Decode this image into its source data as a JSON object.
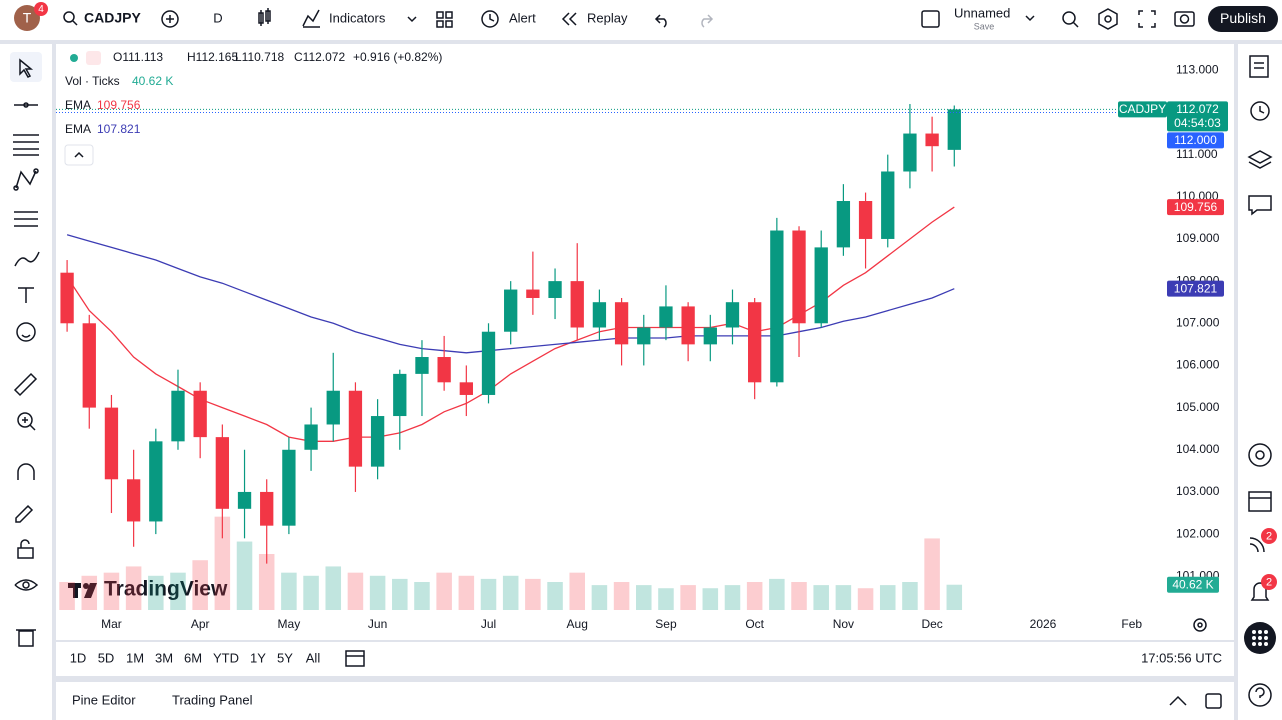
{
  "toolbar": {
    "avatar": "T",
    "badge": "4",
    "symbol": "CADJPY",
    "interval": "D",
    "indicators": "Indicators",
    "alert": "Alert",
    "replay": "Replay",
    "layout_name": "Unnamed",
    "layout_status": "Save",
    "publish": "Publish"
  },
  "chart_data": {
    "type": "candlestick",
    "header": [
      "O111.113",
      "H112.165",
      "L110.718",
      "C112.072",
      "+0.916 (+0.82%)"
    ],
    "watermark": "TradingView",
    "categories": [
      null,
      null,
      "Mar",
      null,
      null,
      null,
      "Apr",
      null,
      null,
      null,
      "May",
      null,
      null,
      null,
      "Jun",
      null,
      null,
      null,
      null,
      "Jul",
      null,
      null,
      null,
      "Aug",
      null,
      null,
      null,
      "Sep",
      null,
      null,
      null,
      "Oct",
      null,
      null,
      null,
      "Nov",
      null,
      null,
      null,
      "Dec",
      null,
      null,
      null,
      null,
      "2026",
      null,
      null,
      null,
      "Feb",
      null
    ],
    "open": [
      108.2,
      107.0,
      105.0,
      103.3,
      102.3,
      104.2,
      105.4,
      104.3,
      102.6,
      103.0,
      102.2,
      104.0,
      104.6,
      105.4,
      103.6,
      104.8,
      105.8,
      106.2,
      105.6,
      105.3,
      106.8,
      107.8,
      107.6,
      108.0,
      106.9,
      107.5,
      106.5,
      106.9,
      107.4,
      106.5,
      106.9,
      107.5,
      105.6,
      109.2,
      107.0,
      108.8,
      109.9,
      109.0,
      110.6,
      111.5,
      111.113,
      null,
      null,
      null,
      null,
      null,
      null,
      null,
      null,
      null
    ],
    "high": [
      108.5,
      107.2,
      105.3,
      104.0,
      104.5,
      105.9,
      105.6,
      104.6,
      104.0,
      103.3,
      104.3,
      105.0,
      106.3,
      105.6,
      105.2,
      105.9,
      106.6,
      106.7,
      106.0,
      107.0,
      108.0,
      108.7,
      108.3,
      108.9,
      107.8,
      107.6,
      107.2,
      107.9,
      107.5,
      107.2,
      107.8,
      107.6,
      109.5,
      109.3,
      109.2,
      110.3,
      110.1,
      111.0,
      112.2,
      111.9,
      112.165,
      null,
      null,
      null,
      null,
      null,
      null,
      null,
      null,
      null
    ],
    "low": [
      106.8,
      104.5,
      102.5,
      101.7,
      102.0,
      104.0,
      103.8,
      101.9,
      101.9,
      101.3,
      102.0,
      103.5,
      104.2,
      103.0,
      103.3,
      104.0,
      104.8,
      105.4,
      104.8,
      105.1,
      106.5,
      107.2,
      107.1,
      106.6,
      106.6,
      106.0,
      106.0,
      106.6,
      106.1,
      106.1,
      106.5,
      105.2,
      105.5,
      106.2,
      106.9,
      108.6,
      108.3,
      108.8,
      110.2,
      110.6,
      110.718,
      null,
      null,
      null,
      null,
      null,
      null,
      null,
      null,
      null
    ],
    "close": [
      107.0,
      105.0,
      103.3,
      102.3,
      104.2,
      105.4,
      104.3,
      102.6,
      103.0,
      102.2,
      104.0,
      104.6,
      105.4,
      103.6,
      104.8,
      105.8,
      106.2,
      105.6,
      105.3,
      106.8,
      107.8,
      107.6,
      108.0,
      106.9,
      107.5,
      106.5,
      106.9,
      107.4,
      106.5,
      106.9,
      107.5,
      105.6,
      109.2,
      107.0,
      108.8,
      109.9,
      109.0,
      110.6,
      111.5,
      111.2,
      112.072,
      null,
      null,
      null,
      null,
      null,
      null,
      null,
      null,
      null
    ],
    "up_color": "#089981",
    "down_color": "#f23645",
    "volume": {
      "name": "Vol · Ticks",
      "last_label": "40.62 K",
      "ylim": [
        0,
        180
      ],
      "values": [
        45,
        55,
        60,
        70,
        55,
        60,
        80,
        150,
        110,
        90,
        60,
        55,
        70,
        60,
        55,
        50,
        45,
        60,
        55,
        50,
        55,
        50,
        45,
        60,
        40,
        45,
        40,
        35,
        40,
        35,
        40,
        45,
        50,
        45,
        40,
        40,
        35,
        40,
        45,
        115,
        40.62,
        null,
        null,
        null,
        null,
        null,
        null,
        null,
        null,
        null
      ]
    },
    "series": [
      {
        "name": "EMA",
        "color": "#f23645",
        "tag": "109.756",
        "values": [
          108.1,
          107.3,
          106.8,
          106.2,
          105.8,
          105.5,
          105.2,
          105.0,
          104.8,
          104.6,
          104.3,
          104.2,
          104.2,
          104.3,
          104.3,
          104.4,
          104.6,
          104.9,
          105.1,
          105.4,
          105.8,
          106.1,
          106.4,
          106.6,
          106.8,
          106.9,
          106.9,
          106.9,
          106.9,
          106.9,
          107.0,
          106.8,
          106.9,
          107.2,
          107.5,
          107.9,
          108.2,
          108.6,
          109.0,
          109.4,
          109.756,
          null,
          null,
          null,
          null,
          null,
          null,
          null,
          null,
          null
        ]
      },
      {
        "name": "EMA",
        "color": "#3c3cb4",
        "tag": "107.821",
        "values": [
          109.1,
          108.95,
          108.8,
          108.65,
          108.5,
          108.3,
          108.1,
          107.95,
          107.75,
          107.55,
          107.35,
          107.15,
          107.0,
          106.8,
          106.65,
          106.5,
          106.4,
          106.35,
          106.3,
          106.35,
          106.4,
          106.45,
          106.5,
          106.55,
          106.6,
          106.65,
          106.65,
          106.65,
          106.7,
          106.7,
          106.7,
          106.7,
          106.7,
          106.8,
          106.9,
          107.05,
          107.15,
          107.3,
          107.45,
          107.6,
          107.821,
          null,
          null,
          null,
          null,
          null,
          null,
          null,
          null,
          null
        ]
      }
    ],
    "last_price": {
      "symbol_tag": "CADJPY",
      "value": 112.072,
      "label": "112.072",
      "countdown": "04:54:03",
      "color": "#089981"
    },
    "alert_line": {
      "value": 112,
      "label": "112.000",
      "color": "#2962ff"
    },
    "ylim": [
      100.2,
      113.6
    ],
    "yticks": [
      {
        "value": 101,
        "label": "101.000"
      },
      {
        "value": 102,
        "label": "102.000"
      },
      {
        "value": 103,
        "label": "103.000"
      },
      {
        "value": 104,
        "label": "104.000"
      },
      {
        "value": 105,
        "label": "105.000"
      },
      {
        "value": 106,
        "label": "106.000"
      },
      {
        "value": 107,
        "label": "107.000"
      },
      {
        "value": 108,
        "label": "108.000"
      },
      {
        "value": 109,
        "label": "109.000"
      },
      {
        "value": 110,
        "label": "110.000"
      },
      {
        "value": 111,
        "label": "111.000"
      },
      {
        "value": 113,
        "label": "113.000"
      }
    ],
    "grid": false
  },
  "range_bar": {
    "ranges": [
      "1D",
      "5D",
      "1M",
      "3M",
      "6M",
      "YTD",
      "1Y",
      "5Y",
      "All"
    ],
    "clock": "17:05:56 UTC"
  },
  "bottom_panel": {
    "tabs": [
      "Pine Editor",
      "Trading Panel"
    ]
  },
  "sidebar": {
    "badges": [
      "2",
      "2"
    ]
  }
}
